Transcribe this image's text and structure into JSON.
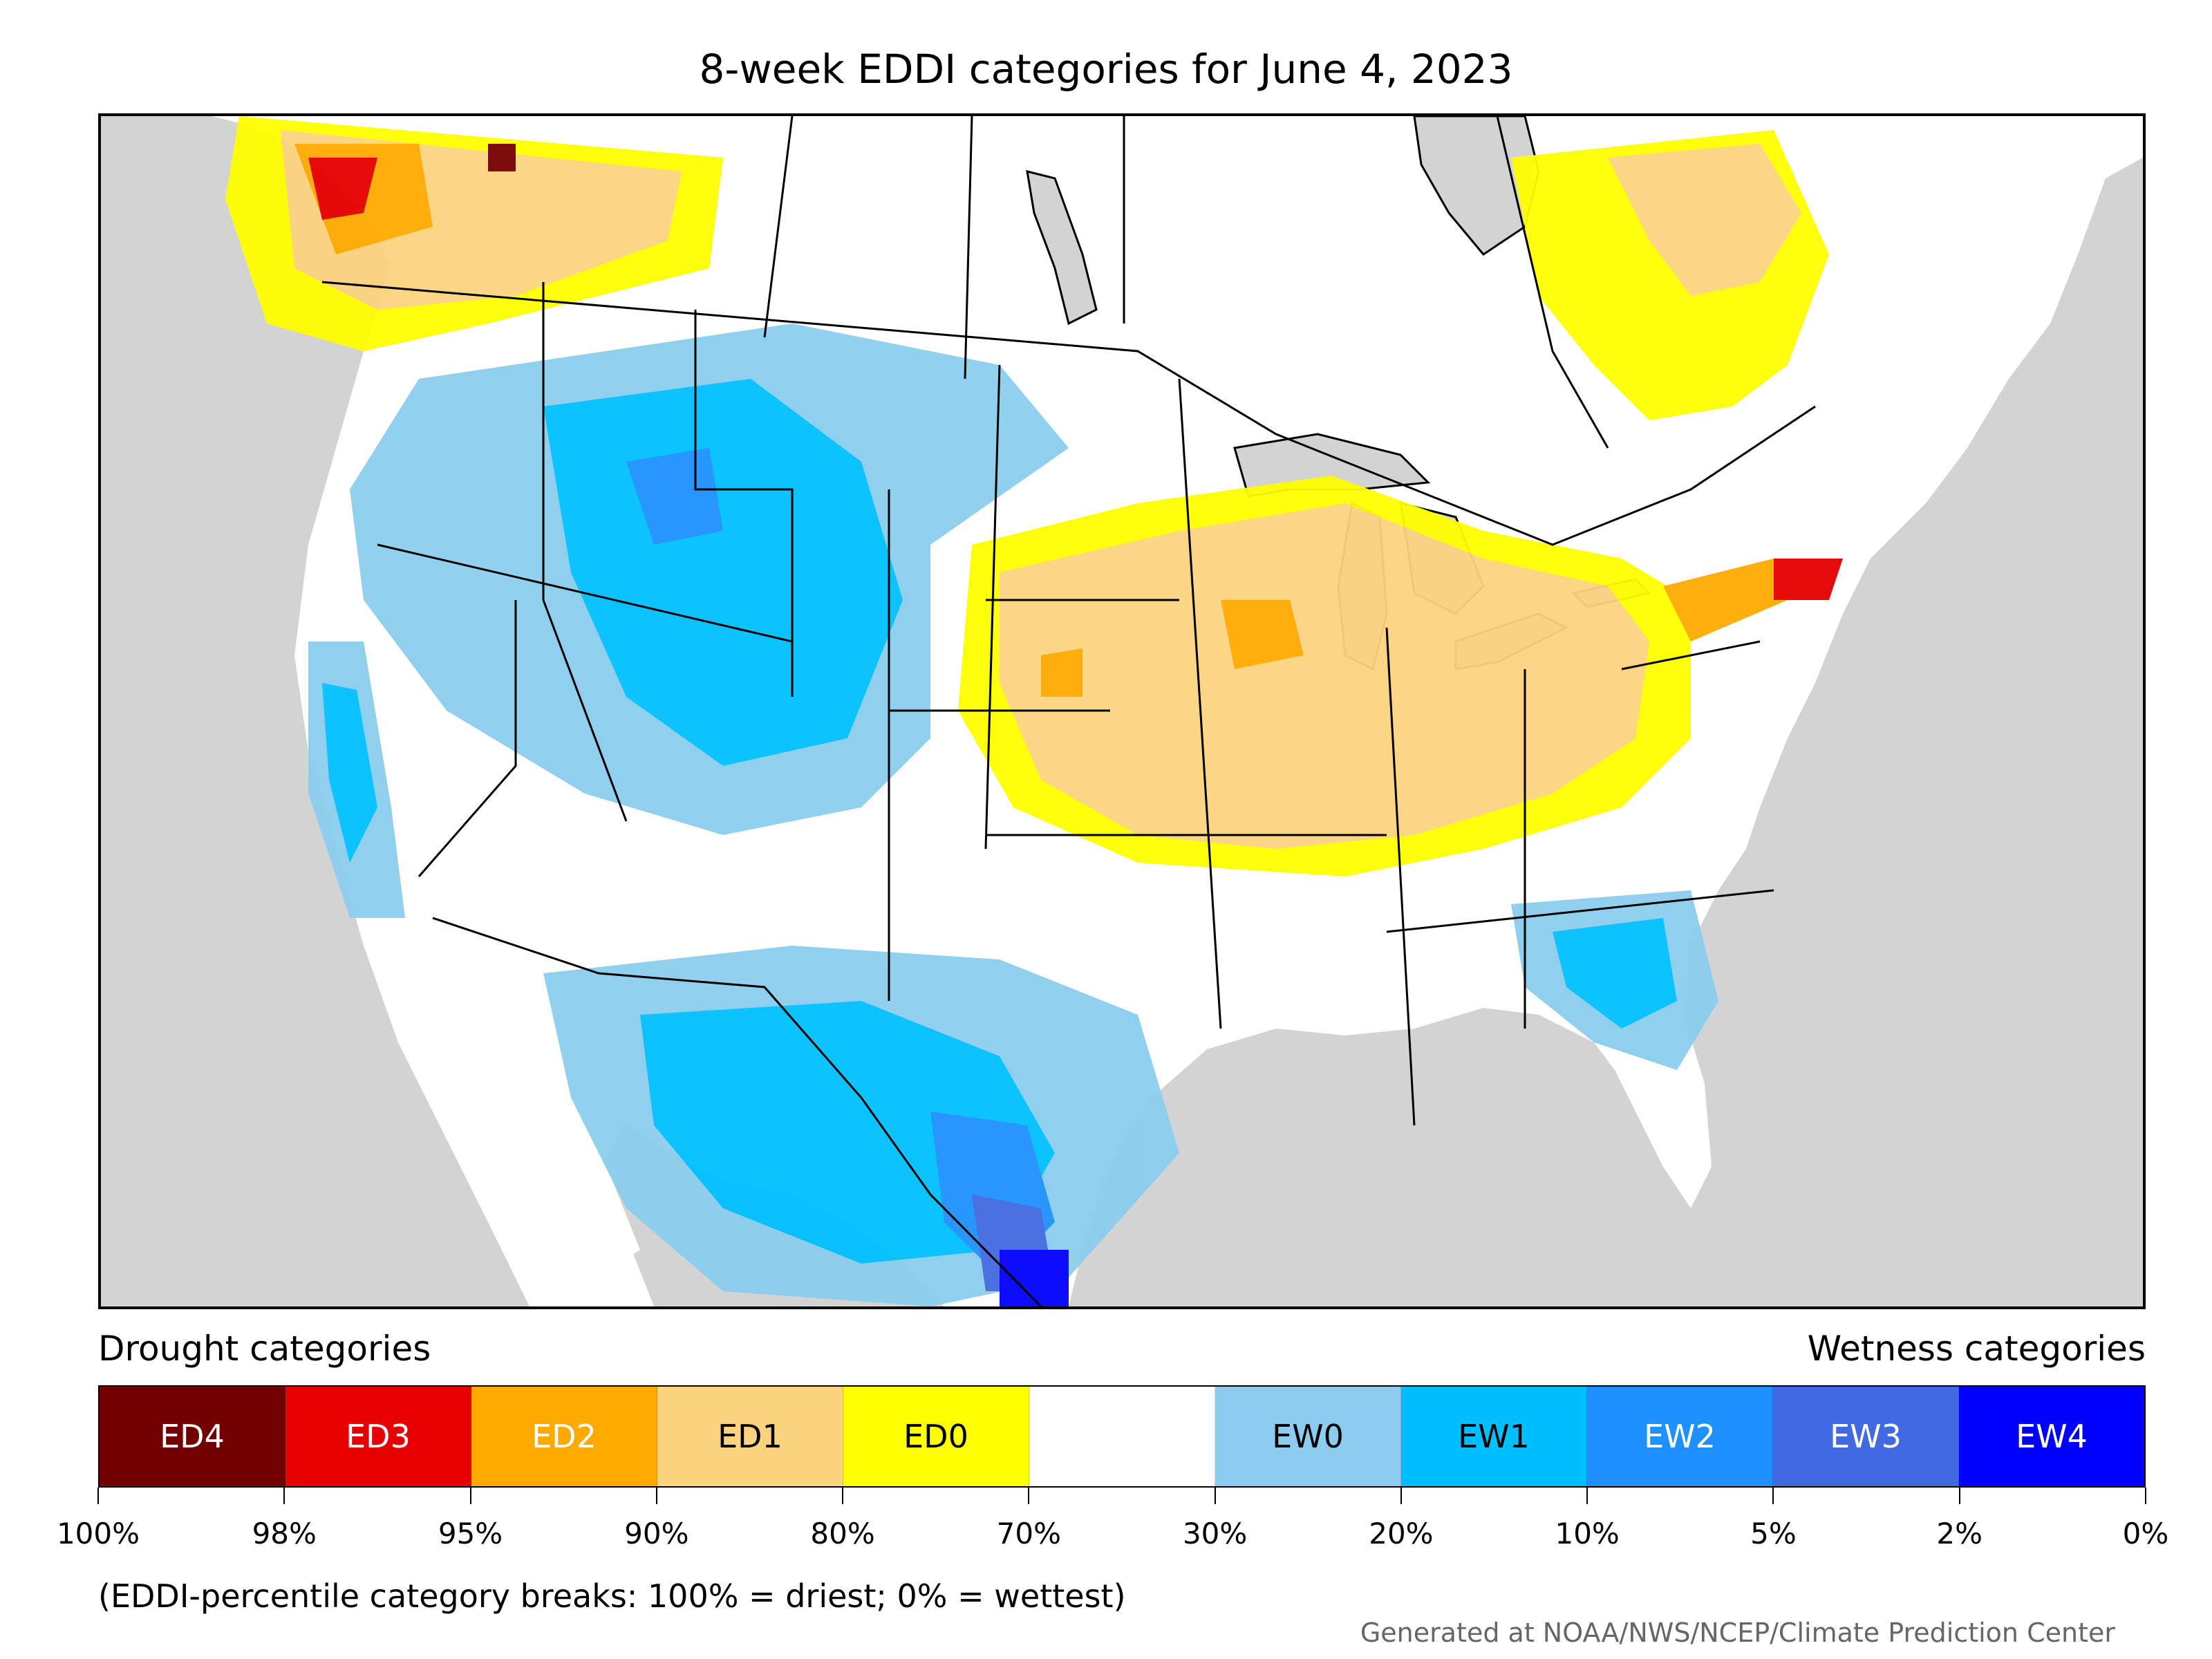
{
  "title": "8-week EDDI categories for June 4, 2023",
  "legend": {
    "drought_title": "Drought categories",
    "wetness_title": "Wetness categories",
    "categories": [
      {
        "label": "ED4",
        "color": "#730000",
        "text_color": "#ffffff"
      },
      {
        "label": "ED3",
        "color": "#e60000",
        "text_color": "#ffffff"
      },
      {
        "label": "ED2",
        "color": "#ffaa00",
        "text_color": "#ffffff"
      },
      {
        "label": "ED1",
        "color": "#fcd37f",
        "text_color": "#000000"
      },
      {
        "label": "ED0",
        "color": "#ffff00",
        "text_color": "#000000"
      },
      {
        "label": "",
        "color": "#ffffff",
        "text_color": "#000000"
      },
      {
        "label": "EW0",
        "color": "#8ccdef",
        "text_color": "#000000"
      },
      {
        "label": "EW1",
        "color": "#00bfff",
        "text_color": "#000000"
      },
      {
        "label": "EW2",
        "color": "#1e90ff",
        "text_color": "#ffffff"
      },
      {
        "label": "EW3",
        "color": "#4169e1",
        "text_color": "#ffffff"
      },
      {
        "label": "EW4",
        "color": "#0000ff",
        "text_color": "#ffffff"
      }
    ],
    "ticks": [
      "100%",
      "98%",
      "95%",
      "90%",
      "80%",
      "70%",
      "30%",
      "20%",
      "10%",
      "5%",
      "2%",
      "0%"
    ]
  },
  "note": "(EDDI-percentile category breaks: 100% = driest; 0% = wettest)",
  "credit": "Generated at NOAA/NWS/NCEP/Climate Prediction Center",
  "map": {
    "background_color": "#d3d3d3",
    "land_color": "#ffffff",
    "border_color": "#000000"
  }
}
